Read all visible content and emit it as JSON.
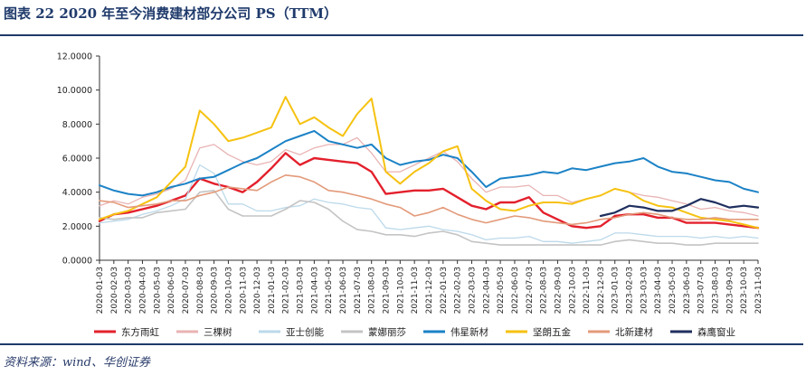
{
  "header": {
    "title": "图表 22 2020 年至今消费建材部分公司 PS（TTM）"
  },
  "footer": {
    "source": "资料来源：wind、华创证券"
  },
  "chart_data": {
    "type": "line",
    "ylim": [
      0,
      12
    ],
    "y_ticks": [
      "0.0000",
      "2.0000",
      "4.0000",
      "6.0000",
      "8.0000",
      "10.0000",
      "12.0000"
    ],
    "categories": [
      "2020-01-03",
      "2020-02-03",
      "2020-03-03",
      "2020-04-03",
      "2020-05-03",
      "2020-06-03",
      "2020-07-03",
      "2020-08-03",
      "2020-09-03",
      "2020-10-03",
      "2020-11-03",
      "2020-12-03",
      "2021-01-03",
      "2021-02-03",
      "2021-03-03",
      "2021-04-03",
      "2021-05-03",
      "2021-06-03",
      "2021-07-03",
      "2021-08-03",
      "2021-09-03",
      "2021-10-03",
      "2021-11-03",
      "2021-12-03",
      "2022-01-03",
      "2022-02-03",
      "2022-03-03",
      "2022-04-03",
      "2022-05-03",
      "2022-06-03",
      "2022-07-03",
      "2022-08-03",
      "2022-09-03",
      "2022-10-03",
      "2022-11-03",
      "2022-12-03",
      "2023-01-03",
      "2023-02-03",
      "2023-03-03",
      "2023-04-03",
      "2023-05-03",
      "2023-06-03",
      "2023-07-03",
      "2023-08-03",
      "2023-09-03",
      "2023-10-03",
      "2023-11-03"
    ],
    "series": [
      {
        "name": "东方雨虹",
        "color": "#e3202c",
        "width": 2.4,
        "values": [
          2.3,
          2.7,
          2.8,
          3.0,
          3.2,
          3.5,
          3.8,
          4.8,
          4.5,
          4.3,
          4.0,
          4.6,
          5.4,
          6.3,
          5.6,
          6.0,
          5.9,
          5.8,
          5.7,
          5.2,
          3.9,
          4.0,
          4.1,
          4.1,
          4.2,
          3.7,
          3.2,
          3.0,
          3.4,
          3.4,
          3.7,
          2.8,
          2.4,
          2.0,
          1.9,
          2.0,
          2.6,
          2.7,
          2.7,
          2.5,
          2.5,
          2.2,
          2.2,
          2.2,
          2.1,
          2.0,
          1.9
        ],
        "start": null
      },
      {
        "name": "三棵树",
        "color": "#e9b3b3",
        "width": 1.3,
        "values": [
          3.2,
          3.5,
          3.3,
          3.7,
          3.9,
          4.2,
          4.7,
          6.6,
          6.8,
          6.2,
          5.8,
          5.6,
          5.8,
          6.5,
          6.2,
          6.6,
          6.8,
          6.8,
          7.2,
          6.3,
          5.2,
          5.2,
          5.6,
          6.0,
          6.4,
          5.8,
          4.8,
          4.0,
          4.3,
          4.3,
          4.4,
          3.8,
          3.8,
          3.4,
          3.6,
          3.8,
          4.2,
          4.0,
          3.8,
          3.7,
          3.5,
          3.3,
          3.0,
          3.1,
          2.9,
          2.8,
          2.6
        ],
        "start": null
      },
      {
        "name": "亚士创能",
        "color": "#bcd9ea",
        "width": 1.3,
        "values": [
          2.2,
          2.3,
          2.4,
          2.7,
          2.9,
          3.2,
          3.6,
          5.6,
          5.1,
          3.3,
          3.3,
          2.9,
          2.9,
          3.1,
          3.2,
          3.6,
          3.4,
          3.3,
          3.1,
          3.0,
          1.9,
          1.8,
          1.9,
          2.0,
          1.8,
          1.7,
          1.5,
          1.2,
          1.3,
          1.3,
          1.4,
          1.1,
          1.1,
          1.0,
          1.1,
          1.2,
          1.6,
          1.6,
          1.5,
          1.4,
          1.4,
          1.4,
          1.3,
          1.4,
          1.3,
          1.4,
          1.3
        ],
        "start": null
      },
      {
        "name": "蒙娜丽莎",
        "color": "#c4c4c4",
        "width": 1.6,
        "values": [
          2.5,
          2.4,
          2.5,
          2.5,
          2.8,
          2.9,
          3.0,
          4.0,
          4.1,
          3.0,
          2.6,
          2.6,
          2.6,
          3.0,
          3.5,
          3.4,
          3.0,
          2.3,
          1.8,
          1.7,
          1.5,
          1.5,
          1.4,
          1.6,
          1.7,
          1.5,
          1.1,
          1.0,
          0.9,
          0.9,
          0.9,
          0.9,
          0.9,
          0.9,
          0.9,
          0.9,
          1.1,
          1.2,
          1.1,
          1.0,
          1.0,
          0.9,
          0.9,
          1.0,
          1.0,
          1.0,
          1.0
        ],
        "start": null
      },
      {
        "name": "伟星新材",
        "color": "#1b82c6",
        "width": 2.0,
        "values": [
          4.4,
          4.1,
          3.9,
          3.8,
          4.0,
          4.3,
          4.5,
          4.8,
          4.9,
          5.3,
          5.7,
          6.0,
          6.5,
          7.0,
          7.3,
          7.6,
          7.0,
          6.8,
          6.6,
          6.8,
          6.0,
          5.6,
          5.8,
          5.9,
          6.2,
          6.0,
          5.2,
          4.3,
          4.8,
          4.9,
          5.0,
          5.2,
          5.1,
          5.4,
          5.3,
          5.5,
          5.7,
          5.8,
          6.0,
          5.5,
          5.2,
          5.1,
          4.9,
          4.7,
          4.6,
          4.2,
          4.0
        ],
        "start": null
      },
      {
        "name": "坚朗五金",
        "color": "#f6c211",
        "width": 2.0,
        "values": [
          2.4,
          2.7,
          2.9,
          3.3,
          3.7,
          4.6,
          5.5,
          8.8,
          8.0,
          7.0,
          7.2,
          7.5,
          7.8,
          9.6,
          8.0,
          8.4,
          7.8,
          7.3,
          8.6,
          9.5,
          5.2,
          4.5,
          5.2,
          5.7,
          6.4,
          6.7,
          4.2,
          3.5,
          3.0,
          2.9,
          3.2,
          3.4,
          3.4,
          3.3,
          3.6,
          3.8,
          4.2,
          4.0,
          3.5,
          3.2,
          3.1,
          2.8,
          2.5,
          2.4,
          2.3,
          2.1,
          1.9
        ],
        "start": null
      },
      {
        "name": "北新建材",
        "color": "#e39a7a",
        "width": 1.6,
        "values": [
          3.5,
          3.4,
          3.1,
          3.2,
          3.3,
          3.5,
          3.5,
          3.8,
          4.0,
          4.3,
          4.2,
          4.1,
          4.6,
          5.0,
          4.9,
          4.6,
          4.1,
          4.0,
          3.8,
          3.6,
          3.3,
          3.1,
          2.6,
          2.8,
          3.1,
          2.7,
          2.4,
          2.2,
          2.4,
          2.6,
          2.5,
          2.3,
          2.2,
          2.1,
          2.2,
          2.4,
          2.5,
          2.7,
          2.8,
          2.7,
          2.5,
          2.4,
          2.4,
          2.5,
          2.4,
          2.4,
          2.4
        ],
        "start": null
      },
      {
        "name": "森鹰窗业",
        "color": "#1f2f5e",
        "width": 2.2,
        "values": [
          null,
          null,
          null,
          null,
          null,
          null,
          null,
          null,
          null,
          null,
          null,
          null,
          null,
          null,
          null,
          null,
          null,
          null,
          null,
          null,
          null,
          null,
          null,
          null,
          null,
          null,
          null,
          null,
          null,
          null,
          null,
          null,
          null,
          null,
          null,
          2.6,
          2.8,
          3.2,
          3.1,
          2.9,
          2.9,
          3.2,
          3.6,
          3.4,
          3.1,
          3.2,
          3.1
        ],
        "start": null
      }
    ]
  }
}
